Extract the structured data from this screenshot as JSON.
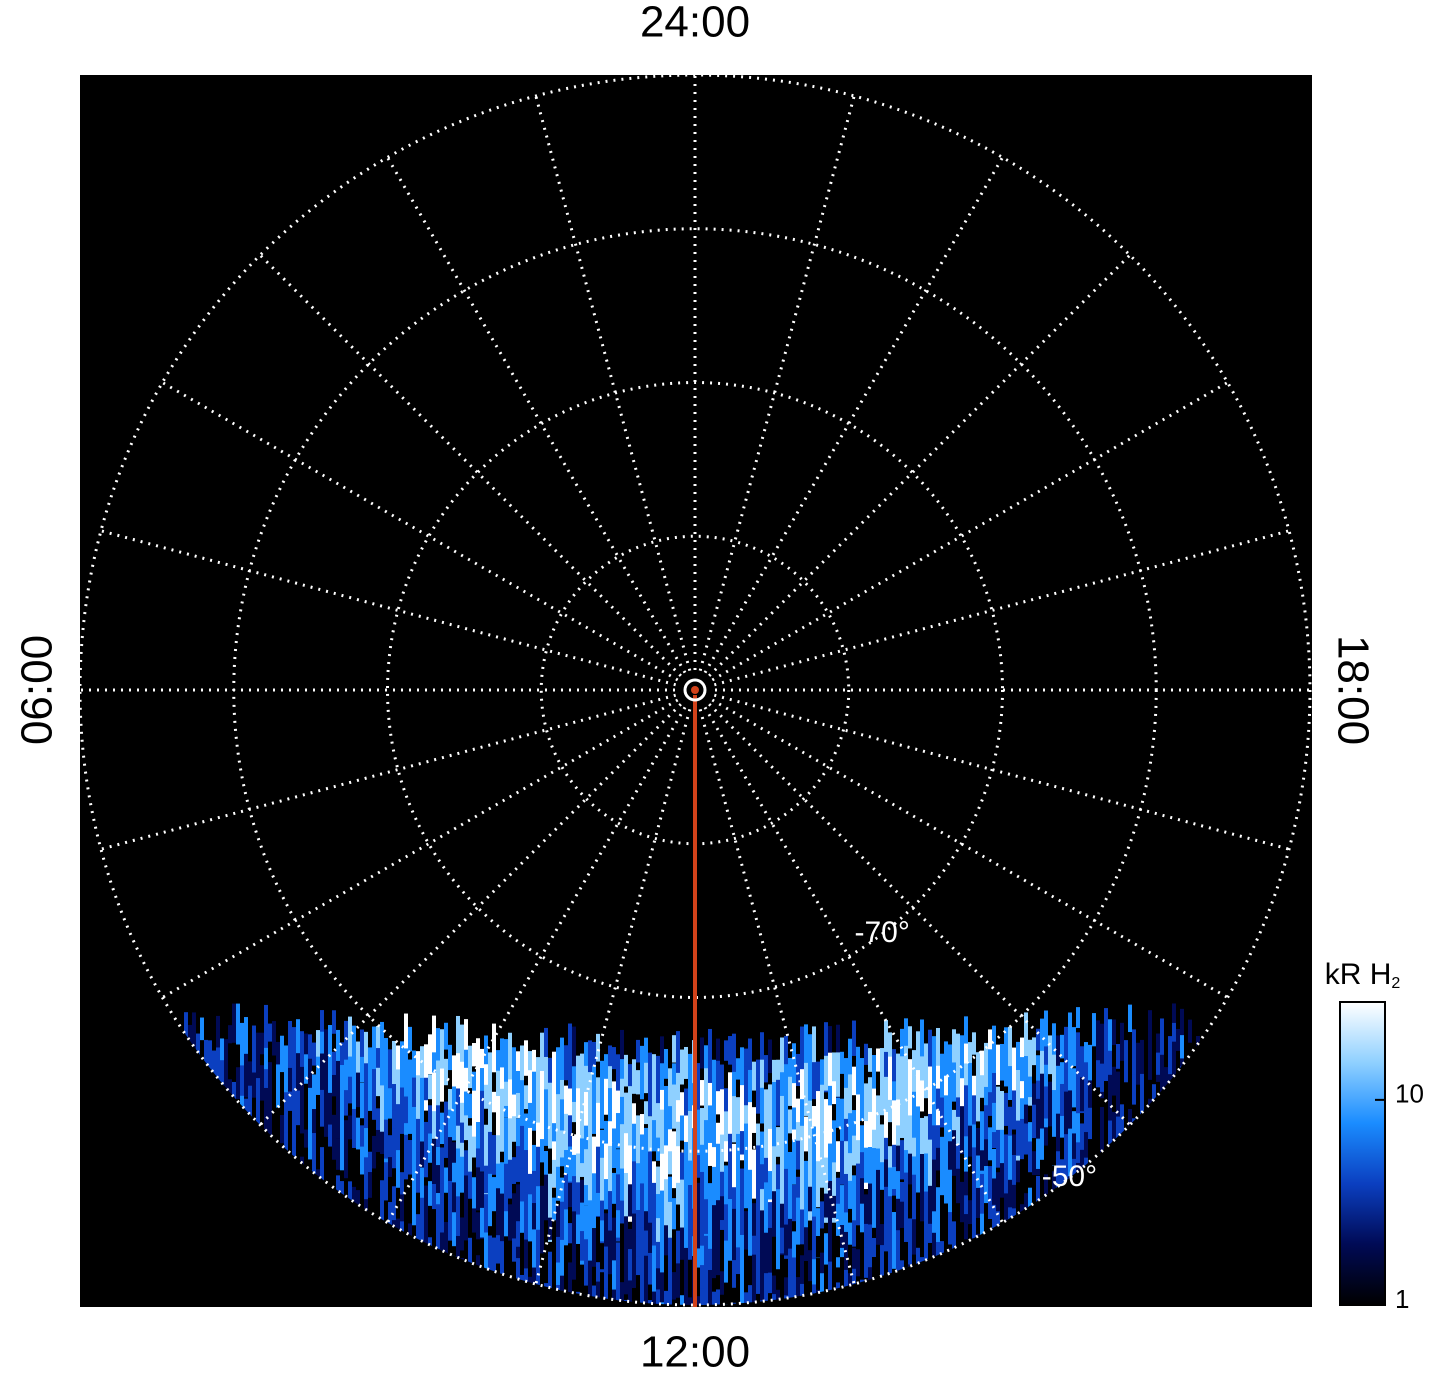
{
  "chart_data": {
    "type": "polar-image",
    "rlim": [
      -90,
      -50
    ],
    "rgrid": [
      -80,
      -70,
      -60,
      -50
    ],
    "rlabels": [
      {
        "value": -70,
        "label": "-70°"
      },
      {
        "value": -50,
        "label": "-50°"
      }
    ],
    "hour_grid_step": 1,
    "hour_labels": [
      {
        "value": 24,
        "label": "24:00"
      },
      {
        "value": 6,
        "label": "06:00"
      },
      {
        "value": 12,
        "label": "12:00"
      },
      {
        "value": 18,
        "label": "18:00"
      }
    ],
    "colorbar": {
      "label": "kR H",
      "label_sub": "2",
      "scale": "log",
      "lim": [
        1,
        30
      ],
      "ticks": [
        1,
        10
      ],
      "colors": [
        "#000000",
        "#000a55",
        "#0b3fc0",
        "#1a8cff",
        "#8fd0ff",
        "#ffffff"
      ]
    }
  }
}
